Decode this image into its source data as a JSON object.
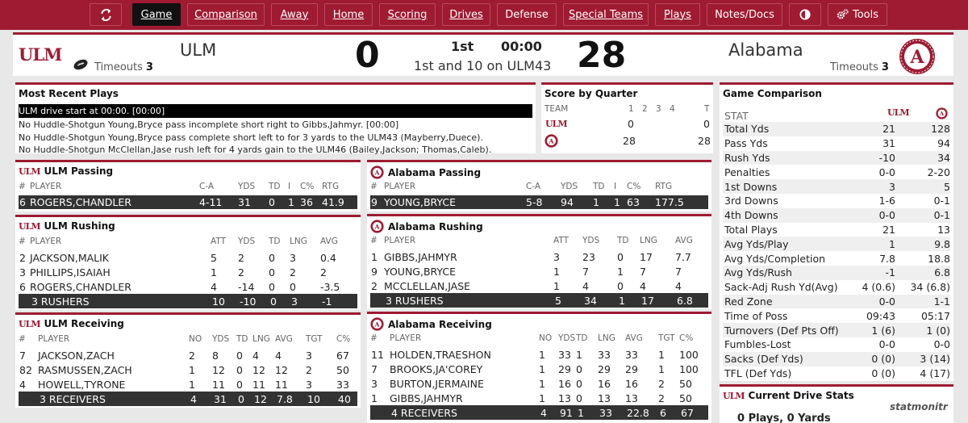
{
  "nav": {
    "items": [
      "Game",
      "Comparison",
      "Away",
      "Home",
      "Scoring",
      "Drives",
      "Defense",
      "Special Teams",
      "Plays",
      "Notes/Docs",
      "Tools"
    ],
    "active": "Game"
  },
  "board": {
    "away": {
      "name": "ULM",
      "logo_text": "ULM",
      "timeouts_label": "Timeouts",
      "timeouts": "3",
      "score": "0"
    },
    "home": {
      "name": "Alabama",
      "timeouts_label": "Timeouts",
      "timeouts": "3",
      "score": "28"
    },
    "quarter": "1st",
    "clock": "00:00",
    "down_distance": "1st and 10 on ULM43"
  },
  "recent_plays": {
    "title": "Most Recent Plays",
    "items": [
      "ULM drive start at 00:00. [00:00]",
      "No Huddle-Shotgun Young,Bryce pass incomplete short right to Gibbs,Jahmyr. [00:00]",
      "No Huddle-Shotgun Young,Bryce pass complete short left to for 3 yards to the ULM43 (Mayberry,Duece).",
      "No Huddle-Shotgun McClellan,Jase rush left for 4 yards gain to the ULM46 (Bailey,Jackson; Thomas,Caleb)."
    ]
  },
  "score_by_quarter": {
    "title": "Score by Quarter",
    "headers": [
      "TEAM",
      "1",
      "2",
      "3",
      "4",
      "T"
    ],
    "rows": [
      {
        "team": "ULM",
        "q1": "0",
        "total": "0"
      },
      {
        "team": "Alabama",
        "q1": "28",
        "total": "28"
      }
    ]
  },
  "comparison": {
    "title": "Game Comparison",
    "stat_header": "STAT",
    "rows": [
      [
        "Total Yds",
        "21",
        "128"
      ],
      [
        "Pass Yds",
        "31",
        "94"
      ],
      [
        "Rush Yds",
        "-10",
        "34"
      ],
      [
        "Penalties",
        "0-0",
        "2-20"
      ],
      [
        "1st Downs",
        "3",
        "5"
      ],
      [
        "3rd Downs",
        "1-6",
        "0-1"
      ],
      [
        "4th Downs",
        "0-0",
        "0-1"
      ],
      [
        "Total Plays",
        "21",
        "13"
      ],
      [
        "Avg Yds/Play",
        "1",
        "9.8"
      ],
      [
        "Avg Yds/Completion",
        "7.8",
        "18.8"
      ],
      [
        "Avg Yds/Rush",
        "-1",
        "6.8"
      ],
      [
        "Sack-Adj Rush Yd(Avg)",
        "4 (0.6)",
        "34 (6.8)"
      ],
      [
        "Red Zone",
        "0-0",
        "1-1"
      ],
      [
        "Time of Poss",
        "09:43",
        "05:17"
      ],
      [
        "Turnovers (Def Pts Off)",
        "1 (6)",
        "1 (0)"
      ],
      [
        "Fumbles-Lost",
        "0-0",
        "0-0"
      ],
      [
        "Sacks (Def Yds)",
        "0 (0)",
        "3 (14)"
      ],
      [
        "TFL (Def Yds)",
        "0 (0)",
        "4 (17)"
      ]
    ]
  },
  "drive": {
    "title": "Current Drive Stats",
    "summary": "0 Plays, 0 Yards"
  },
  "ulm_passing": {
    "title": "ULM Passing",
    "headers": [
      "#",
      "PLAYER",
      "C-A",
      "YDS",
      "TD",
      "I",
      "C%",
      "RTG"
    ],
    "rows": [
      [
        "6",
        "ROGERS,CHANDLER",
        "4-11",
        "31",
        "0",
        "1",
        "36",
        "41.9"
      ]
    ]
  },
  "bama_passing": {
    "title": "Alabama Passing",
    "headers": [
      "#",
      "PLAYER",
      "C-A",
      "YDS",
      "TD",
      "I",
      "C%",
      "RTG"
    ],
    "rows": [
      [
        "9",
        "YOUNG,BRYCE",
        "5-8",
        "94",
        "1",
        "1",
        "63",
        "177.5"
      ]
    ]
  },
  "ulm_rushing": {
    "title": "ULM Rushing",
    "headers": [
      "#",
      "PLAYER",
      "ATT",
      "YDS",
      "TD",
      "LNG",
      "AVG"
    ],
    "rows": [
      [
        "2",
        "JACKSON,MALIK",
        "5",
        "2",
        "0",
        "3",
        "0.4"
      ],
      [
        "3",
        "PHILLIPS,ISAIAH",
        "1",
        "2",
        "0",
        "2",
        "2"
      ],
      [
        "6",
        "ROGERS,CHANDLER",
        "4",
        "-14",
        "0",
        "0",
        "-3.5"
      ]
    ],
    "total": [
      "",
      "3 RUSHERS",
      "10",
      "-10",
      "0",
      "3",
      "-1"
    ]
  },
  "bama_rushing": {
    "title": "Alabama Rushing",
    "headers": [
      "#",
      "PLAYER",
      "ATT",
      "YDS",
      "TD",
      "LNG",
      "AVG"
    ],
    "rows": [
      [
        "1",
        "GIBBS,JAHMYR",
        "3",
        "23",
        "0",
        "17",
        "7.7"
      ],
      [
        "9",
        "YOUNG,BRYCE",
        "1",
        "7",
        "1",
        "7",
        "7"
      ],
      [
        "2",
        "MCCLELLAN,JASE",
        "1",
        "4",
        "0",
        "4",
        "4"
      ]
    ],
    "total": [
      "",
      "3 RUSHERS",
      "5",
      "34",
      "1",
      "17",
      "6.8"
    ]
  },
  "ulm_receiving": {
    "title": "ULM Receiving",
    "headers": [
      "#",
      "PLAYER",
      "NO",
      "YDS",
      "TD",
      "LNG",
      "AVG",
      "TGT",
      "C%"
    ],
    "rows": [
      [
        "7",
        "JACKSON,ZACH",
        "2",
        "8",
        "0",
        "4",
        "4",
        "3",
        "67"
      ],
      [
        "82",
        "RASMUSSEN,ZACH",
        "1",
        "12",
        "0",
        "12",
        "12",
        "2",
        "50"
      ],
      [
        "4",
        "HOWELL,TYRONE",
        "1",
        "11",
        "0",
        "11",
        "11",
        "3",
        "33"
      ]
    ],
    "total": [
      "",
      "3 RECEIVERS",
      "4",
      "31",
      "0",
      "12",
      "7.8",
      "10",
      "40"
    ]
  },
  "bama_receiving": {
    "title": "Alabama Receiving",
    "headers": [
      "#",
      "PLAYER",
      "NO",
      "YDS",
      "TD",
      "LNG",
      "AVG",
      "TGT",
      "C%"
    ],
    "rows": [
      [
        "11",
        "HOLDEN,TRAESHON",
        "1",
        "33",
        "1",
        "33",
        "33",
        "1",
        "100"
      ],
      [
        "7",
        "BROOKS,JA'COREY",
        "1",
        "29",
        "0",
        "29",
        "29",
        "1",
        "100"
      ],
      [
        "3",
        "BURTON,JERMAINE",
        "1",
        "16",
        "0",
        "16",
        "16",
        "2",
        "50"
      ],
      [
        "1",
        "GIBBS,JAHMYR",
        "1",
        "13",
        "0",
        "13",
        "13",
        "2",
        "50"
      ]
    ],
    "total": [
      "",
      "4 RECEIVERS",
      "4",
      "91",
      "1",
      "33",
      "22.8",
      "6",
      "67"
    ]
  },
  "watermark": "statmonitr",
  "colors": {
    "primary": "#9e1b32",
    "dark_row": "#333333",
    "gold": "#c8a24a"
  }
}
